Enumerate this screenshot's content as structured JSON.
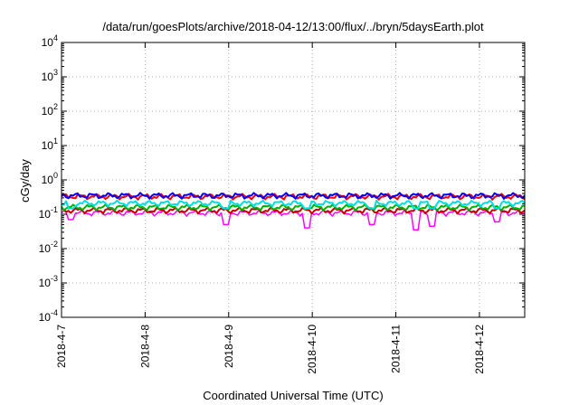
{
  "chart_data": {
    "type": "line",
    "title": "/data/run/goesPlots/archive/2018-04-12/13:00/flux/../bryn/5daysEarth.plot",
    "xlabel": "Coordinated Universal Time (UTC)",
    "ylabel": "cGy/day",
    "x_tick_labels": [
      "2018-4-7",
      "2018-4-8",
      "2018-4-9",
      "2018-4-10",
      "2018-4-11",
      "2018-4-12"
    ],
    "xlim": [
      "2018-04-07T00:00",
      "2018-04-12T13:00"
    ],
    "y_scale": "log",
    "ylim": [
      0.0001,
      10000
    ],
    "y_ticks": [
      {
        "base": "10",
        "exp": "-4"
      },
      {
        "base": "10",
        "exp": "-3"
      },
      {
        "base": "10",
        "exp": "-2"
      },
      {
        "base": "10",
        "exp": "-1"
      },
      {
        "base": "10",
        "exp": "0"
      },
      {
        "base": "10",
        "exp": "1"
      },
      {
        "base": "10",
        "exp": "2"
      },
      {
        "base": "10",
        "exp": "3"
      },
      {
        "base": "10",
        "exp": "4"
      }
    ],
    "grid": true,
    "series": [
      {
        "color": "#ff00ff",
        "baseline": 0.11,
        "min_dip": 0.035,
        "dips": [
          [
            "2018-04-07T02:30",
            0.07
          ],
          [
            "2018-04-08T23:00",
            0.05
          ],
          [
            "2018-04-09T22:30",
            0.04
          ],
          [
            "2018-04-10T17:00",
            0.05
          ],
          [
            "2018-04-11T05:30",
            0.035
          ],
          [
            "2018-04-11T10:30",
            0.045
          ],
          [
            "2018-04-12T05:00",
            0.06
          ]
        ]
      },
      {
        "color": "#cc0000",
        "baseline": 0.13
      },
      {
        "color": "#00b400",
        "baseline": 0.16
      },
      {
        "color": "#00e0e0",
        "baseline": 0.21
      },
      {
        "color": "#ff0000",
        "baseline": 0.33
      },
      {
        "color": "#0000ff",
        "baseline": 0.35
      }
    ]
  }
}
